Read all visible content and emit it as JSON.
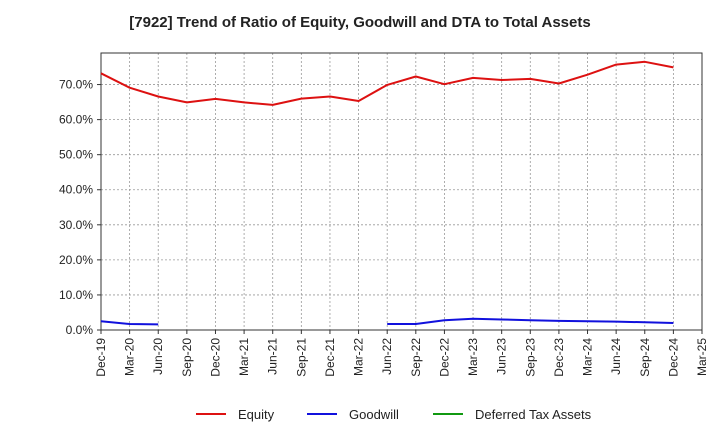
{
  "chart_data": {
    "type": "line",
    "title": "[7922]  Trend of Ratio of Equity, Goodwill and DTA to Total Assets",
    "xlabel": "",
    "ylabel": "",
    "ylim": [
      0,
      79
    ],
    "y_ticks": [
      0,
      10,
      20,
      30,
      40,
      50,
      60,
      70
    ],
    "y_tick_labels": [
      "0.0%",
      "10.0%",
      "20.0%",
      "30.0%",
      "40.0%",
      "50.0%",
      "60.0%",
      "70.0%"
    ],
    "x": [
      "Dec-19",
      "Mar-20",
      "Jun-20",
      "Sep-20",
      "Dec-20",
      "Mar-21",
      "Jun-21",
      "Sep-21",
      "Dec-21",
      "Mar-22",
      "Jun-22",
      "Sep-22",
      "Dec-22",
      "Mar-23",
      "Jun-23",
      "Sep-23",
      "Dec-23",
      "Mar-24",
      "Jun-24",
      "Sep-24",
      "Dec-24",
      "Mar-25"
    ],
    "grid": true,
    "legend_position": "bottom",
    "series": [
      {
        "name": "Equity",
        "color": "#dd1111",
        "values": [
          73.2,
          69.1,
          66.6,
          64.9,
          65.9,
          64.9,
          64.2,
          66.0,
          66.6,
          65.3,
          69.9,
          72.3,
          70.1,
          71.9,
          71.3,
          71.6,
          70.3,
          72.8,
          75.7,
          76.5,
          74.9,
          null
        ]
      },
      {
        "name": "Goodwill",
        "color": "#1111dd",
        "values": [
          2.5,
          1.7,
          1.6,
          null,
          null,
          null,
          null,
          null,
          null,
          null,
          1.7,
          1.7,
          2.8,
          3.2,
          3.0,
          2.8,
          2.6,
          2.5,
          2.4,
          2.2,
          2.0,
          null
        ]
      },
      {
        "name": "Deferred Tax Assets",
        "color": "#119911",
        "values": [
          null,
          null,
          null,
          null,
          null,
          null,
          null,
          null,
          null,
          null,
          null,
          null,
          null,
          null,
          null,
          null,
          null,
          null,
          null,
          null,
          null,
          null
        ]
      }
    ]
  }
}
